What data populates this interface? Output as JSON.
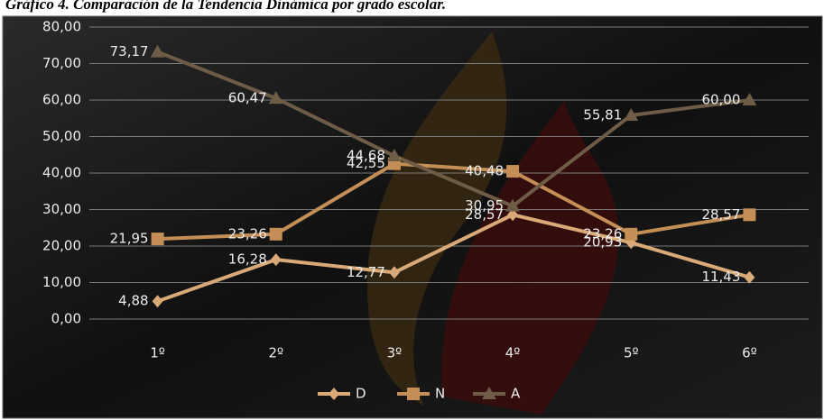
{
  "chart_data": {
    "type": "line",
    "title": "Gráfico 4. Comparación de la Tendencia Dinámica por grado escolar.",
    "categories": [
      "1º",
      "2º",
      "3º",
      "4º",
      "5º",
      "6º"
    ],
    "series": [
      {
        "name": "D",
        "color": "#d9aa78",
        "marker": "diamond",
        "values": [
          4.88,
          16.28,
          12.77,
          28.57,
          20.93,
          11.43
        ],
        "value_labels": [
          "4,88",
          "16,28",
          "12,77",
          "28,57",
          "20,93",
          "11,43"
        ]
      },
      {
        "name": "N",
        "color": "#c48f57",
        "marker": "square",
        "values": [
          21.95,
          23.26,
          42.55,
          40.48,
          23.26,
          28.57
        ],
        "value_labels": [
          "21,95",
          "23,26",
          "42,55",
          "40,48",
          "23,26",
          "28,57"
        ]
      },
      {
        "name": "A",
        "color": "#6e5c47",
        "marker": "triangle",
        "values": [
          73.17,
          60.47,
          44.68,
          30.95,
          55.81,
          60.0
        ],
        "value_labels": [
          "73,17",
          "60,47",
          "44,68",
          "30,95",
          "55,81",
          "60,00"
        ]
      }
    ],
    "ylim": [
      0,
      80
    ],
    "yticks": [
      {
        "value": 0,
        "label": "0,00"
      },
      {
        "value": 10,
        "label": "10,00"
      },
      {
        "value": 20,
        "label": "20,00"
      },
      {
        "value": 30,
        "label": "30,00"
      },
      {
        "value": 40,
        "label": "40,00"
      },
      {
        "value": 50,
        "label": "50,00"
      },
      {
        "value": 60,
        "label": "60,00"
      },
      {
        "value": 70,
        "label": "70,00"
      },
      {
        "value": 80,
        "label": "80,00"
      }
    ],
    "grid": true,
    "legend": "bottom"
  }
}
